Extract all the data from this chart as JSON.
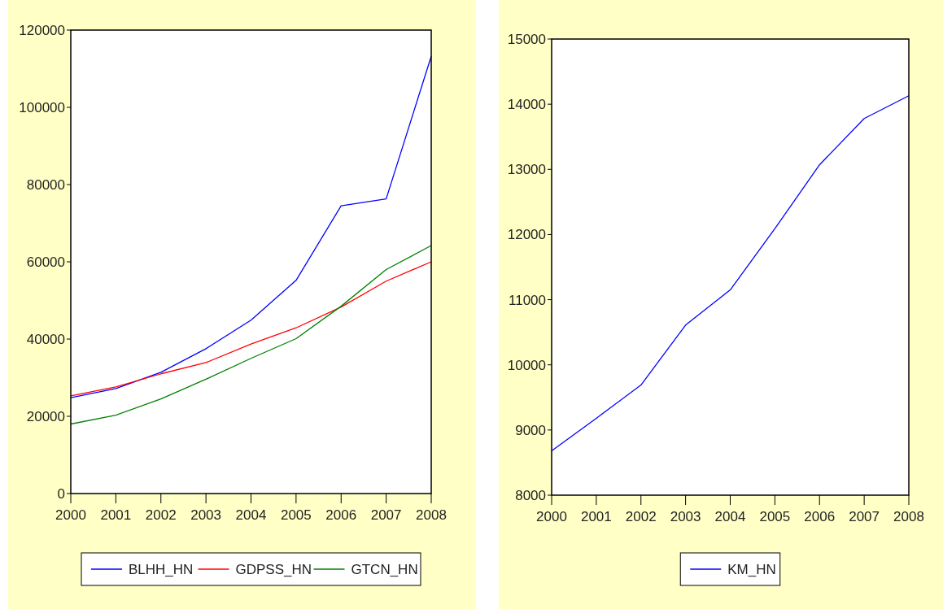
{
  "chart_data": [
    {
      "type": "line",
      "x": [
        2000,
        2001,
        2002,
        2003,
        2004,
        2005,
        2006,
        2007,
        2008
      ],
      "xlim": [
        2000,
        2008
      ],
      "xticks": [
        2000,
        2001,
        2002,
        2003,
        2004,
        2005,
        2006,
        2007,
        2008
      ],
      "ylim": [
        0,
        120000
      ],
      "yticks": [
        0,
        20000,
        40000,
        60000,
        80000,
        100000,
        120000
      ],
      "grid": false,
      "legend": "bottom",
      "series": [
        {
          "name": "BLHH_HN",
          "color": "#0000ff",
          "values": [
            24800,
            27200,
            31400,
            37500,
            44900,
            55200,
            74500,
            76300,
            113200
          ]
        },
        {
          "name": "GDPSS_HN",
          "color": "#ff0000",
          "values": [
            25300,
            27600,
            31000,
            33900,
            38700,
            42900,
            48300,
            55000,
            60000
          ]
        },
        {
          "name": "GTCN_HN",
          "color": "#008000",
          "values": [
            18000,
            20300,
            24500,
            29600,
            35000,
            40100,
            48500,
            58000,
            64200
          ]
        }
      ]
    },
    {
      "type": "line",
      "x": [
        2000,
        2001,
        2002,
        2003,
        2004,
        2005,
        2006,
        2007,
        2008
      ],
      "xlim": [
        2000,
        2008
      ],
      "xticks": [
        2000,
        2001,
        2002,
        2003,
        2004,
        2005,
        2006,
        2007,
        2008
      ],
      "ylim": [
        8000,
        15000
      ],
      "yticks": [
        8000,
        9000,
        10000,
        11000,
        12000,
        13000,
        14000,
        15000
      ],
      "grid": false,
      "legend": "bottom",
      "series": [
        {
          "name": "KM_HN",
          "color": "#0000ff",
          "values": [
            8680,
            9180,
            9690,
            10610,
            11150,
            12090,
            13070,
            13780,
            14130
          ]
        }
      ]
    }
  ]
}
